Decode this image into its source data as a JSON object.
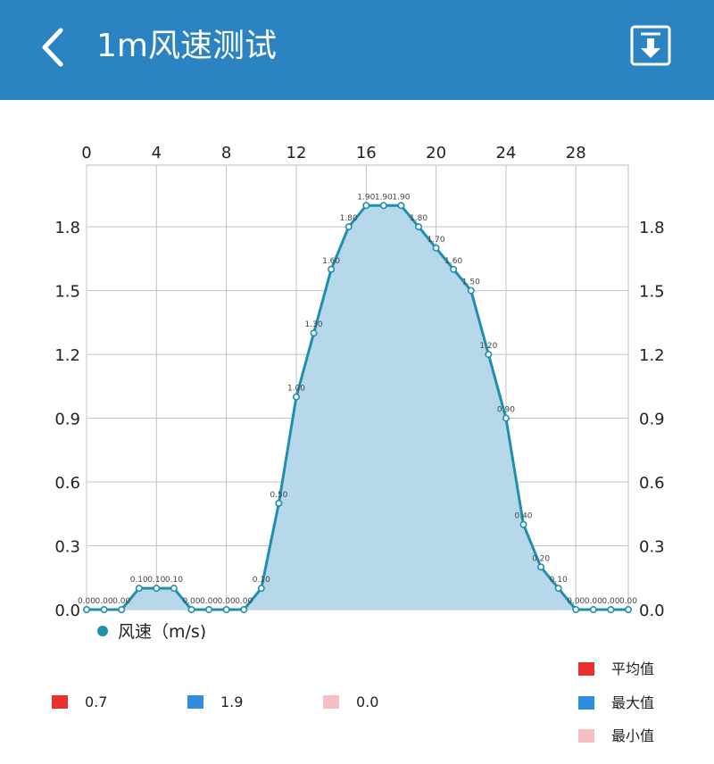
{
  "header": {
    "title": "1m风速测试",
    "back_icon": "chevron-left-icon",
    "download_icon": "download-icon"
  },
  "chart_data": {
    "type": "area",
    "x": [
      0,
      1,
      2,
      3,
      4,
      5,
      6,
      7,
      8,
      9,
      10,
      11,
      12,
      13,
      14,
      15,
      16,
      17,
      18,
      19,
      20,
      21,
      22,
      23,
      24,
      25,
      26,
      27,
      28,
      29,
      30,
      31
    ],
    "series": [
      {
        "name": "风速（m/s)",
        "values": [
          0.0,
          0.0,
          0.0,
          0.1,
          0.1,
          0.1,
          0.0,
          0.0,
          0.0,
          0.0,
          0.1,
          0.5,
          1.0,
          1.3,
          1.6,
          1.8,
          1.9,
          1.9,
          1.9,
          1.8,
          1.7,
          1.6,
          1.5,
          1.2,
          0.9,
          0.4,
          0.2,
          0.1,
          0.0,
          0.0,
          0.0,
          0.0
        ],
        "labels": [
          "0.00",
          "0.00",
          "0.00",
          "0.10",
          "0.10",
          "0.10",
          "0.00",
          "0.00",
          "0.00",
          "0.00",
          "0.10",
          "0.50",
          "1.00",
          "1.30",
          "1.60",
          "1.80",
          "1.90",
          "1.90",
          "1.90",
          "1.80",
          "1.70",
          "1.60",
          "1.50",
          "1.20",
          "0.90",
          "0.40",
          "0.20",
          "0.10",
          "0.00",
          "0.00",
          "0.00",
          "0.00"
        ],
        "color": "#1f8fae",
        "fill": "#b7d7eb"
      }
    ],
    "x_ticks": [
      "0",
      "4",
      "8",
      "12",
      "16",
      "20",
      "24",
      "28"
    ],
    "x_tick_values": [
      0,
      4,
      8,
      12,
      16,
      20,
      24,
      28
    ],
    "y_ticks": [
      "0.0",
      "0.3",
      "0.6",
      "0.9",
      "1.2",
      "1.5",
      "1.8"
    ],
    "y_tick_values": [
      0,
      0.3,
      0.6,
      0.9,
      1.2,
      1.5,
      1.8
    ],
    "xlim": [
      0,
      31
    ],
    "ylim": [
      0,
      2.09
    ],
    "grid": true,
    "title": "",
    "xlabel": "",
    "ylabel": ""
  },
  "stats": {
    "avg": {
      "label": "平均值",
      "value": "0.7",
      "color": "#e8302e"
    },
    "max": {
      "label": "最大值",
      "value": "1.9",
      "color": "#2f8de0"
    },
    "min": {
      "label": "最小值",
      "value": "0.0",
      "color": "#f5bec2"
    }
  }
}
